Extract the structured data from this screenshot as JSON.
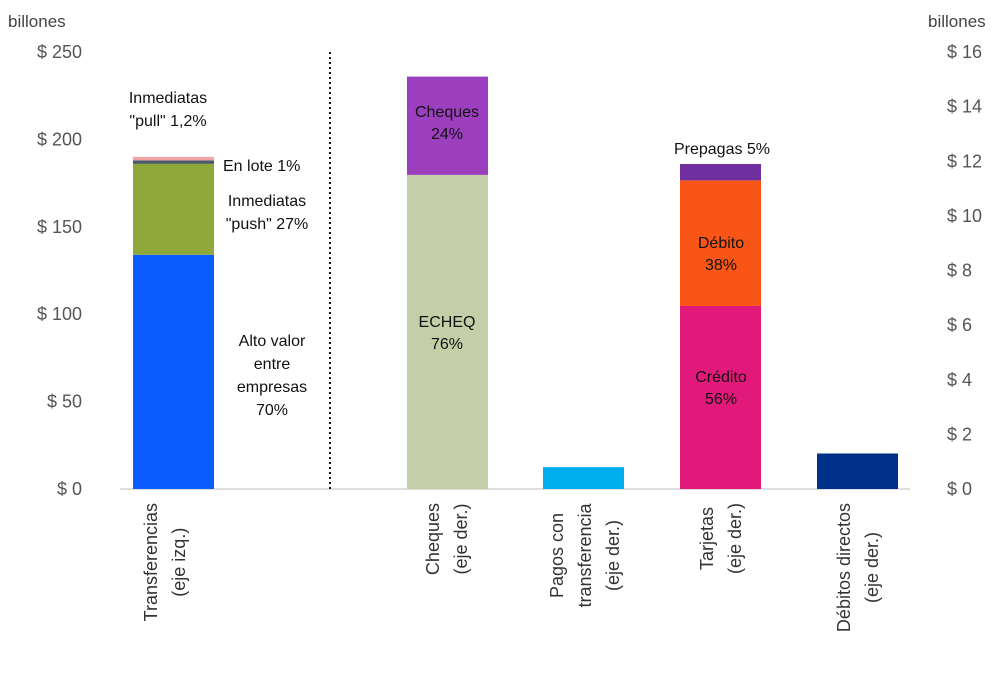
{
  "chart_data": {
    "type": "bar",
    "stacked": true,
    "left_axis": {
      "unit": "billones",
      "range": [
        0,
        250
      ],
      "ticks": [
        0,
        50,
        100,
        150,
        200,
        250
      ],
      "tick_labels": [
        "$ 0",
        "$ 50",
        "$ 100",
        "$ 150",
        "$ 200",
        "$ 250"
      ]
    },
    "right_axis": {
      "unit": "billones",
      "range": [
        0,
        16
      ],
      "ticks": [
        0,
        2,
        4,
        6,
        8,
        10,
        12,
        14,
        16
      ],
      "tick_labels": [
        "$ 0",
        "$ 2",
        "$ 4",
        "$ 6",
        "$ 8",
        "$ 10",
        "$ 12",
        "$ 14",
        "$ 16"
      ]
    },
    "categories": [
      {
        "label_lines": [
          "Transferencias",
          "(eje izq.)"
        ],
        "axis": "left",
        "segments": [
          {
            "value": 134,
            "color": "#0a5cff",
            "label_lines": [
              "Alto valor",
              "entre",
              "empresas",
              "70%"
            ]
          },
          {
            "value": 52,
            "color": "#8fa83a",
            "label_lines": [
              "Inmediatas",
              "\"push\" 27%"
            ]
          },
          {
            "value": 2,
            "color": "#4a5a66",
            "label_lines": [
              "En lote 1%"
            ]
          },
          {
            "value": 2,
            "color": "#f4a3a3",
            "label_lines": [
              "Inmediatas",
              "\"pull\" 1,2%"
            ]
          }
        ]
      },
      {
        "label_lines": [
          "Cheques",
          "(eje der.)"
        ],
        "axis": "right",
        "segments": [
          {
            "value": 11.5,
            "color": "#c5cfa7",
            "label_lines": [
              "ECHEQ",
              "76%"
            ]
          },
          {
            "value": 3.6,
            "color": "#9b3fbf",
            "label_lines": [
              "Cheques",
              "24%"
            ]
          }
        ]
      },
      {
        "label_lines": [
          "Pagos con",
          "transferencia",
          "(eje der.)"
        ],
        "axis": "right",
        "segments": [
          {
            "value": 0.8,
            "color": "#00aeef",
            "label_lines": []
          }
        ]
      },
      {
        "label_lines": [
          "Tarjetas",
          "(eje der.)"
        ],
        "axis": "right",
        "segments": [
          {
            "value": 6.7,
            "color": "#e0197a",
            "label_lines": [
              "Crédito",
              "56%"
            ]
          },
          {
            "value": 4.6,
            "color": "#f95516",
            "label_lines": [
              "Débito",
              "38%"
            ]
          },
          {
            "value": 0.6,
            "color": "#7030a0",
            "label_lines": [
              "Prepagas  5%"
            ]
          }
        ]
      },
      {
        "label_lines": [
          "Débitos directos",
          "(eje der.)"
        ],
        "axis": "right",
        "segments": [
          {
            "value": 1.3,
            "color": "#003087",
            "label_lines": []
          }
        ]
      }
    ]
  }
}
